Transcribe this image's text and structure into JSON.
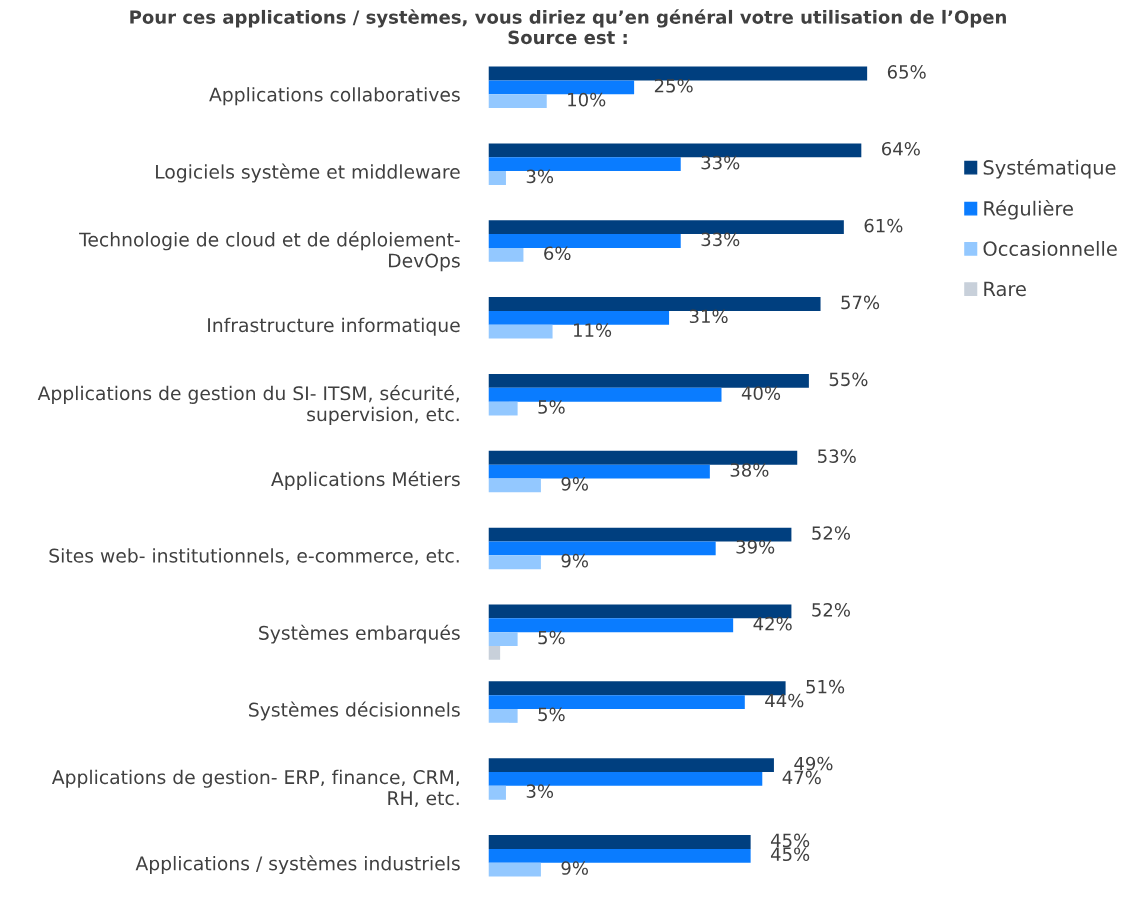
{
  "chart_data": {
    "type": "bar",
    "orientation": "horizontal",
    "title": "Pour ces applications / systèmes, vous diriez qu’en général votre utilisation de l’Open\nSource est :",
    "categories": [
      "Applications collaboratives",
      "Logiciels système et middleware",
      "Technologie de cloud et de déploiement-\nDevOps",
      "Infrastructure informatique",
      "Applications de gestion du SI- ITSM, sécurité,\nsupervision, etc.",
      "Applications Métiers",
      "Sites web- institutionnels, e-commerce, etc.",
      "Systèmes embarqués",
      "Systèmes décisionnels",
      "Applications de gestion- ERP, finance, CRM,\nRH, etc.",
      "Applications / systèmes industriels"
    ],
    "series": [
      {
        "name": "Systématique",
        "color": "#003f7f",
        "values": [
          65,
          64,
          61,
          57,
          55,
          53,
          52,
          52,
          51,
          49,
          45
        ],
        "value_labels": [
          "65%",
          "64%",
          "61%",
          "57%",
          "55%",
          "53%",
          "52%",
          "52%",
          "51%",
          "49%",
          "45%"
        ]
      },
      {
        "name": "Régulière",
        "color": "#0a7cff",
        "values": [
          25,
          33,
          33,
          31,
          40,
          38,
          39,
          42,
          44,
          47,
          45
        ],
        "value_labels": [
          "25%",
          "33%",
          "33%",
          "31%",
          "40%",
          "38%",
          "39%",
          "42%",
          "44%",
          "47%",
          "45%"
        ]
      },
      {
        "name": "Occasionnelle",
        "color": "#93c8ff",
        "values": [
          10,
          3,
          6,
          11,
          5,
          9,
          9,
          5,
          5,
          3,
          9
        ],
        "value_labels": [
          "10%",
          "3%",
          "6%",
          "11%",
          "5%",
          "9%",
          "9%",
          "5%",
          "5%",
          "3%",
          "9%"
        ]
      },
      {
        "name": "Rare",
        "color": "#c8d0da",
        "values": [
          null,
          null,
          null,
          null,
          null,
          null,
          null,
          2,
          null,
          null,
          null
        ],
        "value_labels": [
          null,
          null,
          null,
          null,
          null,
          null,
          null,
          null,
          null,
          null,
          null
        ]
      }
    ],
    "legend": "right",
    "grid": false
  }
}
